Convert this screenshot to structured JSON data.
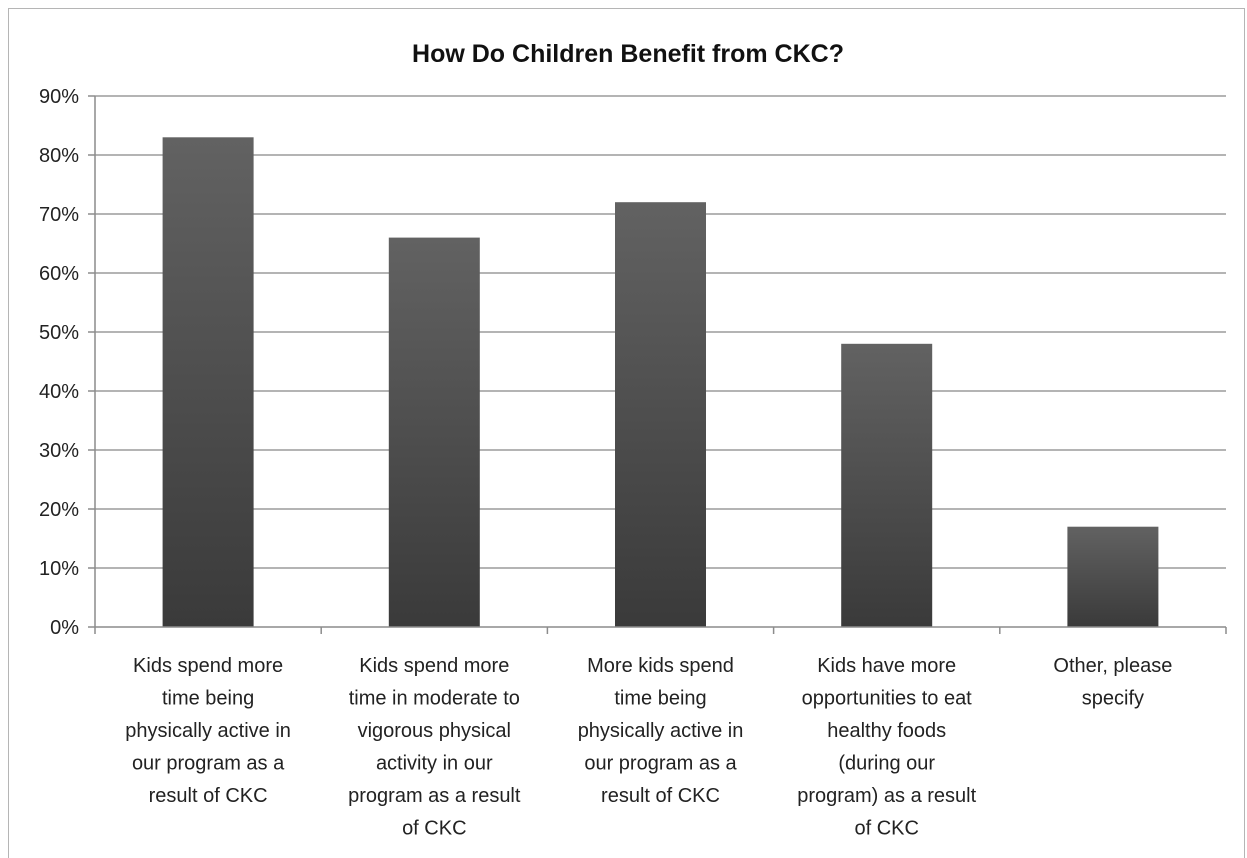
{
  "chart_data": {
    "type": "bar",
    "title": "How Do Children Benefit from CKC?",
    "xlabel": "",
    "ylabel": "",
    "categories": [
      [
        "Kids spend more",
        "time being",
        "physically active in",
        "our program as a",
        "result of CKC"
      ],
      [
        "Kids spend more",
        "time in moderate to",
        "vigorous physical",
        "activity in our",
        "program as a result",
        "of CKC"
      ],
      [
        "More kids spend",
        "time being",
        "physically active in",
        "our program as a",
        "result of CKC"
      ],
      [
        "Kids have more",
        "opportunities to eat",
        "healthy foods",
        "(during our",
        "program) as a result",
        "of CKC"
      ],
      [
        "Other, please",
        "specify"
      ]
    ],
    "values": [
      83,
      66,
      72,
      48,
      17
    ],
    "ylim": [
      0,
      90
    ],
    "ytick_step": 10,
    "ytick_labels": [
      "0%",
      "10%",
      "20%",
      "30%",
      "40%",
      "50%",
      "60%",
      "70%",
      "80%",
      "90%"
    ],
    "grid": true,
    "legend": "none",
    "colors": {
      "bar_top": "#626262",
      "bar_bottom": "#3a3a3a",
      "grid": "#b4b4b4",
      "axis": "#8c8c8c"
    }
  }
}
